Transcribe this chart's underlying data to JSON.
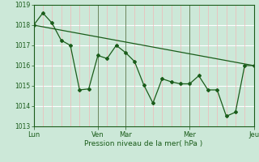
{
  "bg_color": "#cce8d8",
  "grid_color_v": "#f0b8b8",
  "grid_color_h": "#ffffff",
  "line_color": "#1a5c1a",
  "title": "Pression niveau de la mer( hPa )",
  "ylim": [
    1013.0,
    1019.0
  ],
  "yticks": [
    1013,
    1014,
    1015,
    1016,
    1017,
    1018,
    1019
  ],
  "x_day_positions": [
    0,
    3.5,
    5.0,
    8.5,
    12.0
  ],
  "x_day_labels": [
    "Lun",
    "Ven",
    "Mar",
    "Mer",
    "Jeu"
  ],
  "line1_x": [
    0,
    0.5,
    1.0,
    1.5,
    2.0,
    2.5,
    3.0,
    3.5,
    4.0,
    4.5,
    5.0,
    5.5,
    6.0,
    6.5,
    7.0,
    7.5,
    8.0,
    8.5,
    9.0,
    9.5,
    10.0,
    10.5,
    11.0,
    11.5,
    12.0
  ],
  "line1_y": [
    1018.0,
    1018.6,
    1018.1,
    1017.25,
    1017.0,
    1014.8,
    1014.85,
    1016.5,
    1016.35,
    1017.0,
    1016.65,
    1016.2,
    1015.05,
    1014.15,
    1015.35,
    1015.2,
    1015.1,
    1015.1,
    1015.5,
    1014.8,
    1014.8,
    1013.5,
    1013.7,
    1016.0,
    1016.0
  ],
  "line2_x": [
    0,
    12.0
  ],
  "line2_y": [
    1018.0,
    1016.0
  ],
  "vgrid_minor_step": 0.5,
  "xlim": [
    0,
    12.0
  ]
}
